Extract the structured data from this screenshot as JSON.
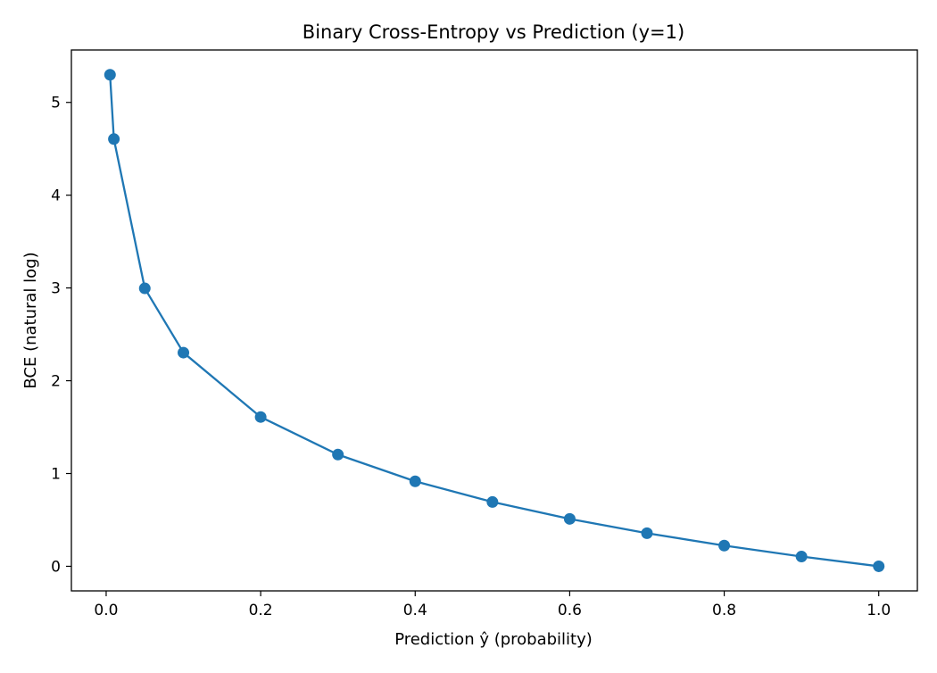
{
  "chart_data": {
    "type": "line",
    "title": "Binary Cross-Entropy vs Prediction (y=1)",
    "xlabel": "Prediction ŷ (probability)",
    "ylabel": "BCE (natural log)",
    "xlim": [
      -0.045,
      1.05
    ],
    "ylim": [
      -0.265,
      5.565
    ],
    "xticks": [
      0.0,
      0.2,
      0.4,
      0.6,
      0.8,
      1.0
    ],
    "xtick_labels": [
      "0.0",
      "0.2",
      "0.4",
      "0.6",
      "0.8",
      "1.0"
    ],
    "yticks": [
      0,
      1,
      2,
      3,
      4,
      5
    ],
    "ytick_labels": [
      "0",
      "1",
      "2",
      "3",
      "4",
      "5"
    ],
    "grid": false,
    "legend": "none",
    "series": [
      {
        "color": "#1f77b4",
        "marker": "circle",
        "x": [
          0.005,
          0.01,
          0.05,
          0.1,
          0.2,
          0.3,
          0.4,
          0.5,
          0.6,
          0.7,
          0.8,
          0.9,
          1.0
        ],
        "y": [
          5.298,
          4.605,
          2.996,
          2.303,
          1.609,
          1.204,
          0.916,
          0.693,
          0.511,
          0.357,
          0.223,
          0.105,
          0.0
        ]
      }
    ]
  }
}
